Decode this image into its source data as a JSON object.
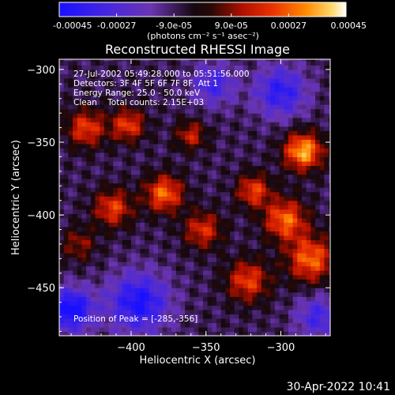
{
  "chart_data": {
    "type": "heatmap",
    "title": "Reconstructed RHESSI Image",
    "xlabel": "Heliocentric X (arcsec)",
    "ylabel": "Heliocentric Y (arcsec)",
    "xlim": [
      -448,
      -267
    ],
    "ylim": [
      -483,
      -293
    ],
    "x_ticks": [
      -400,
      -350,
      -300
    ],
    "y_ticks": [
      -300,
      -350,
      -400,
      -450
    ],
    "colorbar": {
      "range": [
        -0.00045,
        0.00045
      ],
      "tick_labels": [
        "-0.00045",
        "-0.00027",
        "-9.0e-05",
        "9.0e-05",
        "0.00027",
        "0.00045"
      ],
      "units": "(photons cm⁻² s⁻¹ asec⁻²)",
      "colors": [
        "#1a10ff",
        "#5a2ec8",
        "#6a35b0",
        "#120810",
        "#b01000",
        "#e83000",
        "#ff7a00",
        "#ffd24a",
        "#ffffff"
      ]
    },
    "annotations": [
      "27-Jul-2002 05:49:28.000 to 05:51:56.000",
      "Detectors: 3F 4F 5F 6F 7F 8F, Att 1",
      "Energy Range: 25.0 - 50.0 keV",
      "Clean    Total counts: 2.15E+03"
    ],
    "peak_label": "Position of Peak = [-285,-356]",
    "peak": {
      "x": -285,
      "y": -356
    },
    "sources": [
      {
        "x": -285,
        "y": -356,
        "amp": 0.00045,
        "sigma": 9
      },
      {
        "x": -297,
        "y": -403,
        "amp": 0.00036,
        "sigma": 10
      },
      {
        "x": -280,
        "y": -430,
        "amp": 0.00036,
        "sigma": 11
      },
      {
        "x": -318,
        "y": -383,
        "amp": 0.0003,
        "sigma": 8
      },
      {
        "x": -378,
        "y": -385,
        "amp": 0.00036,
        "sigma": 9
      },
      {
        "x": -402,
        "y": -338,
        "amp": 0.0003,
        "sigma": 8
      },
      {
        "x": -430,
        "y": -340,
        "amp": 0.0003,
        "sigma": 9
      },
      {
        "x": -412,
        "y": -395,
        "amp": 0.0003,
        "sigma": 9
      },
      {
        "x": -352,
        "y": -410,
        "amp": 0.00027,
        "sigma": 9
      },
      {
        "x": -322,
        "y": -445,
        "amp": 0.0003,
        "sigma": 10
      },
      {
        "x": -360,
        "y": -345,
        "amp": 0.00024,
        "sigma": 7
      },
      {
        "x": -435,
        "y": -420,
        "amp": 0.00018,
        "sigma": 8
      },
      {
        "x": -300,
        "y": -315,
        "amp": -0.0003,
        "sigma": 12
      },
      {
        "x": -395,
        "y": -460,
        "amp": -0.00036,
        "sigma": 14
      },
      {
        "x": -345,
        "y": -310,
        "amp": -0.00024,
        "sigma": 10
      },
      {
        "x": -440,
        "y": -465,
        "amp": -0.00042,
        "sigma": 10
      },
      {
        "x": -275,
        "y": -470,
        "amp": -0.00024,
        "sigma": 10
      }
    ]
  },
  "footer": {
    "timestamp": "30-Apr-2022 10:41"
  }
}
